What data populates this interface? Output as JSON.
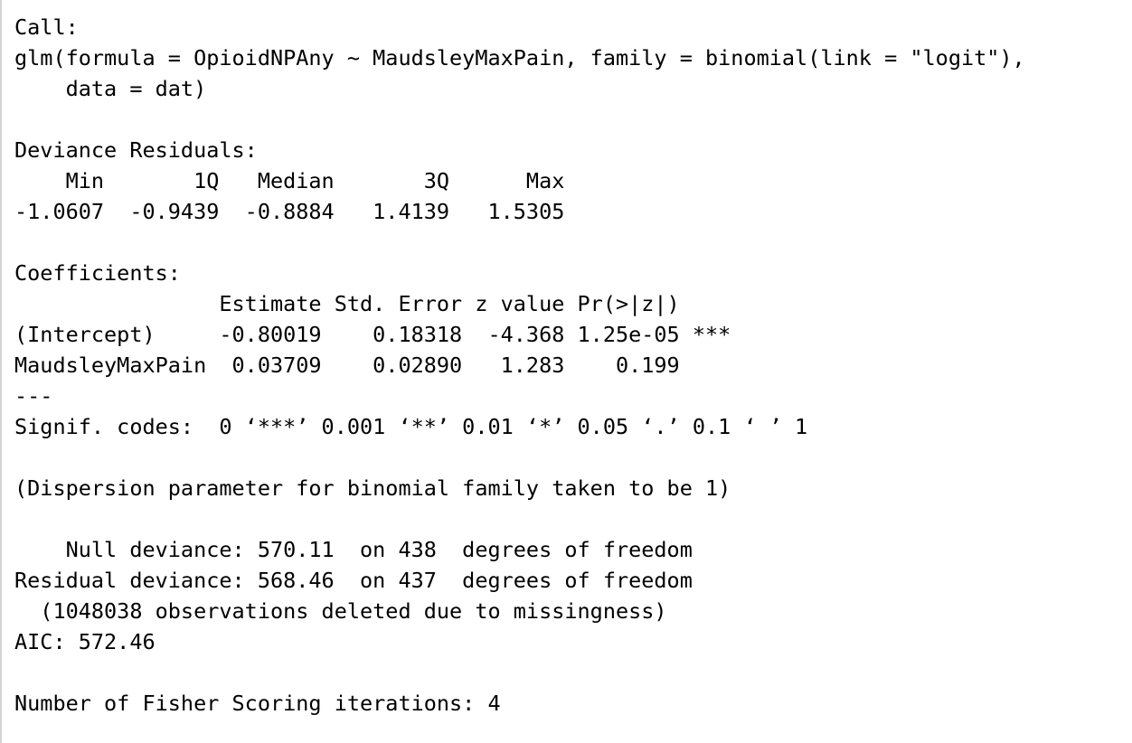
{
  "console": {
    "lines": [
      "Call:",
      "glm(formula = OpioidNPAny ~ MaudsleyMaxPain, family = binomial(link = \"logit\"),",
      "    data = dat)",
      "",
      "Deviance Residuals:",
      "    Min       1Q   Median       3Q      Max  ",
      "-1.0607  -0.9439  -0.8884   1.4139   1.5305  ",
      "",
      "Coefficients:",
      "                Estimate Std. Error z value Pr(>|z|)    ",
      "(Intercept)     -0.80019    0.18318  -4.368 1.25e-05 ***",
      "MaudsleyMaxPain  0.03709    0.02890   1.283    0.199    ",
      "---",
      "Signif. codes:  0 ‘***’ 0.001 ‘**’ 0.01 ‘*’ 0.05 ‘.’ 0.1 ‘ ’ 1",
      "",
      "(Dispersion parameter for binomial family taken to be 1)",
      "",
      "    Null deviance: 570.11  on 438  degrees of freedom",
      "Residual deviance: 568.46  on 437  degrees of freedom",
      "  (1048038 observations deleted due to missingness)",
      "AIC: 572.46",
      "",
      "Number of Fisher Scoring iterations: 4"
    ]
  }
}
